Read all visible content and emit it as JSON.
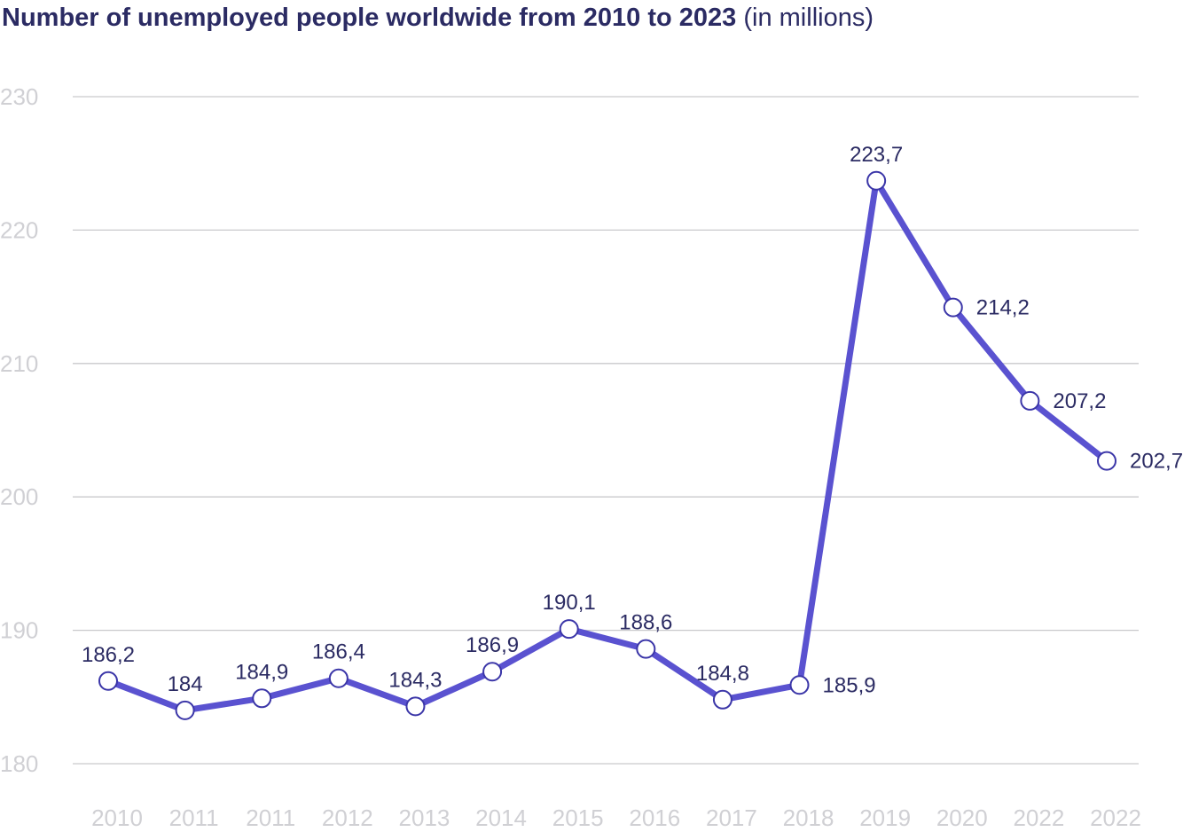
{
  "title": {
    "main": "Number of unemployed people worldwide from 2010 to 2023",
    "unit": "(in millions)"
  },
  "colors": {
    "line": "#5a52d0",
    "marker_stroke": "#3b36a8",
    "grid": "#c9c9cc",
    "axis_text": "#d0d0d4",
    "label_text": "#2b2b63"
  },
  "chart_data": {
    "type": "line",
    "title": "Number of unemployed people worldwide from 2010 to 2023 (in millions)",
    "xlabel": "",
    "ylabel": "",
    "categories": [
      "2010",
      "2011",
      "2011",
      "2012",
      "2013",
      "2014",
      "2015",
      "2016",
      "2017",
      "2018",
      "2019",
      "2020",
      "2022",
      "2022"
    ],
    "series": [
      {
        "values": [
          186.2,
          184,
          184.9,
          186.4,
          184.3,
          186.9,
          190.1,
          188.6,
          184.8,
          185.9,
          223.7,
          214.2,
          207.2,
          202.7
        ],
        "labels": [
          "186,2",
          "184",
          "184,9",
          "186,4",
          "184,3",
          "186,9",
          "190,1",
          "188,6",
          "184,8",
          "185,9",
          "223,7",
          "214,2",
          "207,2",
          "202,7"
        ]
      }
    ],
    "ylim": [
      180,
      230
    ],
    "yticks": [
      "180",
      "190",
      "200",
      "210",
      "220",
      "230"
    ],
    "grid": true,
    "legend": "none"
  }
}
